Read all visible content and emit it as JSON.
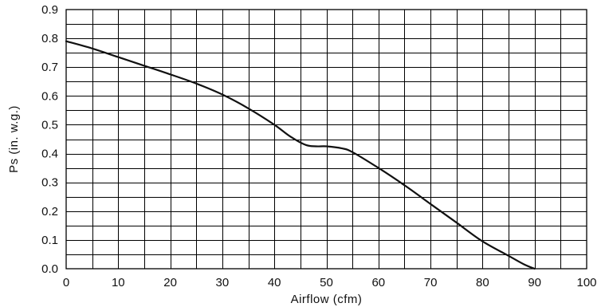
{
  "chart_data": {
    "type": "line",
    "title": "",
    "xlabel": "Airflow (cfm)",
    "ylabel": "Ps (in. w.g.)",
    "xlim": [
      0,
      100
    ],
    "ylim": [
      0,
      0.9
    ],
    "grid": true,
    "x_ticks": [
      "0",
      "10",
      "20",
      "30",
      "40",
      "50",
      "60",
      "70",
      "80",
      "90",
      "100"
    ],
    "y_ticks": [
      "0.0",
      "0.1",
      "0.2",
      "0.3",
      "0.4",
      "0.5",
      "0.6",
      "0.7",
      "0.8",
      "0.9"
    ],
    "series": [
      {
        "name": "",
        "x": [
          0,
          5,
          10,
          15,
          20,
          25,
          30,
          35,
          40,
          43,
          46,
          48,
          50,
          53,
          55,
          60,
          65,
          70,
          75,
          80,
          85,
          88,
          90
        ],
        "y": [
          0.79,
          0.765,
          0.735,
          0.705,
          0.675,
          0.643,
          0.605,
          0.557,
          0.5,
          0.46,
          0.43,
          0.425,
          0.425,
          0.418,
          0.405,
          0.35,
          0.29,
          0.225,
          0.16,
          0.095,
          0.045,
          0.015,
          0.0
        ]
      }
    ]
  }
}
